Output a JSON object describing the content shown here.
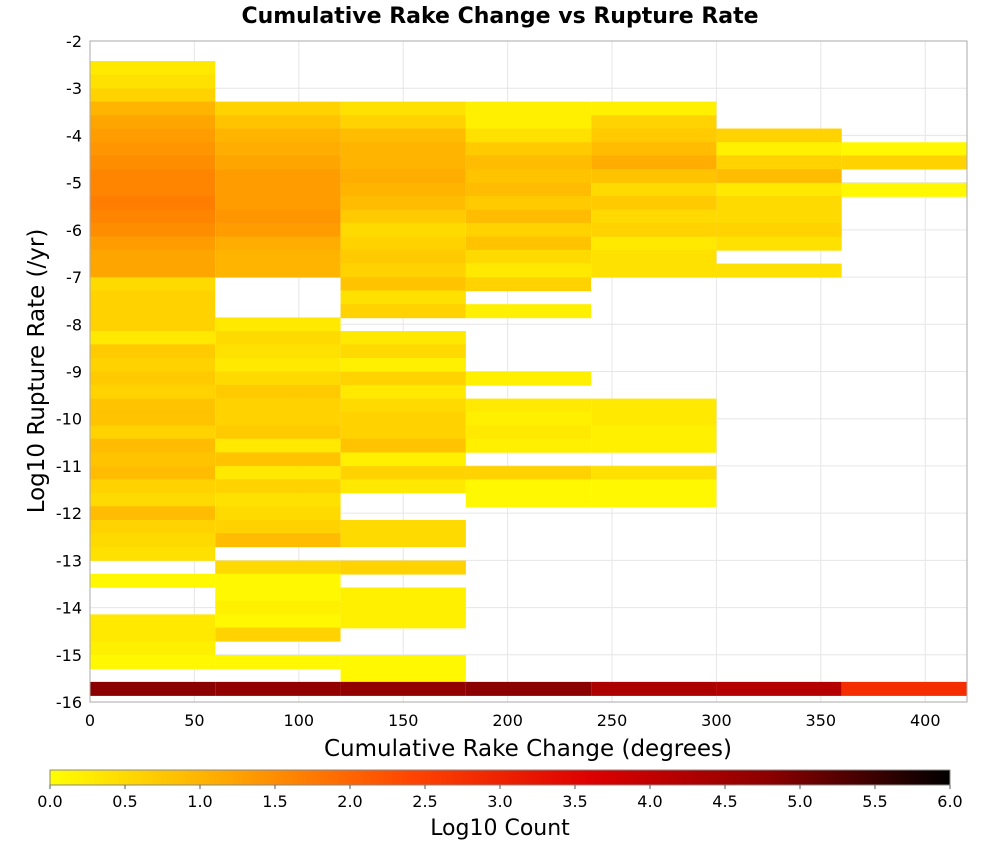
{
  "chart_data": {
    "type": "heatmap",
    "title": "Cumulative Rake Change vs Rupture Rate",
    "xlabel": "Cumulative Rake Change (degrees)",
    "ylabel": "Log10 Rupture Rate (/yr)",
    "xlim": [
      0,
      420
    ],
    "ylim": [
      -16,
      -2
    ],
    "x_ticks": [
      "0",
      "50",
      "100",
      "150",
      "200",
      "250",
      "300",
      "350",
      "400"
    ],
    "y_ticks": [
      "-2",
      "-3",
      "-4",
      "-5",
      "-6",
      "-7",
      "-8",
      "-9",
      "-10",
      "-11",
      "-12",
      "-13",
      "-14",
      "-15",
      "-16"
    ],
    "x_bin_width": 60,
    "y_bin_height": 0.286,
    "grid": true,
    "colorbar": {
      "label": "Log10 Count",
      "range": [
        0,
        6
      ],
      "ticks": [
        "0.0",
        "0.5",
        "1.0",
        "1.5",
        "2.0",
        "2.5",
        "3.0",
        "3.5",
        "4.0",
        "4.5",
        "5.0",
        "5.5",
        "6.0"
      ],
      "stops": [
        "#ffff00",
        "#ffa500",
        "#ff4500",
        "#dd0000",
        "#8b0000",
        "#000000"
      ]
    },
    "columns": [
      {
        "x0": 0,
        "bins": [
          [
            -2.71,
            0.3
          ],
          [
            -3.0,
            0.4
          ],
          [
            -3.29,
            0.6
          ],
          [
            -3.57,
            1.0
          ],
          [
            -3.86,
            1.2
          ],
          [
            -4.14,
            1.3
          ],
          [
            -4.43,
            1.4
          ],
          [
            -4.71,
            1.5
          ],
          [
            -5.0,
            1.6
          ],
          [
            -5.29,
            1.6
          ],
          [
            -5.57,
            1.7
          ],
          [
            -5.86,
            1.6
          ],
          [
            -6.14,
            1.5
          ],
          [
            -6.43,
            1.3
          ],
          [
            -6.71,
            1.2
          ],
          [
            -7.0,
            1.2
          ],
          [
            -7.29,
            0.5
          ],
          [
            -7.57,
            0.6
          ],
          [
            -7.86,
            0.6
          ],
          [
            -8.14,
            0.6
          ],
          [
            -8.43,
            0.3
          ],
          [
            -8.71,
            0.7
          ],
          [
            -9.0,
            0.6
          ],
          [
            -9.29,
            0.7
          ],
          [
            -9.57,
            0.6
          ],
          [
            -9.86,
            0.8
          ],
          [
            -10.14,
            0.8
          ],
          [
            -10.43,
            0.6
          ],
          [
            -10.71,
            0.9
          ],
          [
            -11.0,
            0.8
          ],
          [
            -11.29,
            0.9
          ],
          [
            -11.57,
            0.6
          ],
          [
            -11.86,
            0.5
          ],
          [
            -12.14,
            0.9
          ],
          [
            -12.43,
            0.6
          ],
          [
            -12.71,
            0.5
          ],
          [
            -13.0,
            0.4
          ],
          [
            -13.57,
            0.1
          ],
          [
            -14.43,
            0.3
          ],
          [
            -14.71,
            0.3
          ],
          [
            -15.0,
            0.2
          ],
          [
            -15.29,
            0.1
          ],
          [
            -15.86,
            4.8
          ]
        ]
      },
      {
        "x0": 60,
        "bins": [
          [
            -3.57,
            0.6
          ],
          [
            -3.86,
            0.8
          ],
          [
            -4.14,
            1.0
          ],
          [
            -4.43,
            1.1
          ],
          [
            -4.71,
            1.2
          ],
          [
            -5.0,
            1.3
          ],
          [
            -5.29,
            1.3
          ],
          [
            -5.57,
            1.3
          ],
          [
            -5.86,
            1.4
          ],
          [
            -6.14,
            1.3
          ],
          [
            -6.43,
            1.1
          ],
          [
            -6.71,
            1.0
          ],
          [
            -7.0,
            1.0
          ],
          [
            -8.14,
            0.3
          ],
          [
            -8.43,
            0.5
          ],
          [
            -8.71,
            0.4
          ],
          [
            -9.0,
            0.3
          ],
          [
            -9.29,
            0.5
          ],
          [
            -9.57,
            0.7
          ],
          [
            -9.86,
            0.6
          ],
          [
            -10.14,
            0.6
          ],
          [
            -10.43,
            0.7
          ],
          [
            -10.71,
            0.3
          ],
          [
            -11.0,
            0.8
          ],
          [
            -11.29,
            0.3
          ],
          [
            -11.57,
            0.6
          ],
          [
            -11.86,
            0.4
          ],
          [
            -12.14,
            0.5
          ],
          [
            -12.43,
            0.6
          ],
          [
            -12.71,
            0.9
          ],
          [
            -13.29,
            0.5
          ],
          [
            -13.57,
            0.1
          ],
          [
            -13.86,
            0.1
          ],
          [
            -14.14,
            0.2
          ],
          [
            -14.43,
            0.1
          ],
          [
            -14.71,
            0.6
          ],
          [
            -15.29,
            0.1
          ],
          [
            -15.86,
            4.7
          ]
        ]
      },
      {
        "x0": 120,
        "bins": [
          [
            -3.57,
            0.4
          ],
          [
            -3.86,
            0.6
          ],
          [
            -4.14,
            0.9
          ],
          [
            -4.43,
            1.0
          ],
          [
            -4.71,
            1.0
          ],
          [
            -5.0,
            1.1
          ],
          [
            -5.29,
            1.0
          ],
          [
            -5.57,
            0.9
          ],
          [
            -5.86,
            0.7
          ],
          [
            -6.14,
            0.5
          ],
          [
            -6.43,
            0.6
          ],
          [
            -6.71,
            0.7
          ],
          [
            -7.0,
            0.6
          ],
          [
            -7.29,
            0.8
          ],
          [
            -7.57,
            0.4
          ],
          [
            -7.86,
            0.6
          ],
          [
            -8.43,
            0.3
          ],
          [
            -8.71,
            0.5
          ],
          [
            -9.0,
            0.2
          ],
          [
            -9.29,
            0.6
          ],
          [
            -9.57,
            0.3
          ],
          [
            -9.86,
            0.5
          ],
          [
            -10.14,
            0.6
          ],
          [
            -10.43,
            0.6
          ],
          [
            -10.71,
            0.8
          ],
          [
            -11.0,
            0.2
          ],
          [
            -11.29,
            0.6
          ],
          [
            -11.57,
            0.3
          ],
          [
            -12.43,
            0.5
          ],
          [
            -12.71,
            0.5
          ],
          [
            -13.29,
            0.6
          ],
          [
            -13.86,
            0.2
          ],
          [
            -14.14,
            0.2
          ],
          [
            -14.43,
            0.2
          ],
          [
            -15.29,
            0.1
          ],
          [
            -15.57,
            0.1
          ],
          [
            -15.86,
            4.7
          ]
        ]
      },
      {
        "x0": 180,
        "bins": [
          [
            -3.57,
            0.2
          ],
          [
            -3.86,
            0.2
          ],
          [
            -4.14,
            0.4
          ],
          [
            -4.43,
            0.7
          ],
          [
            -4.71,
            0.9
          ],
          [
            -5.0,
            0.8
          ],
          [
            -5.29,
            0.9
          ],
          [
            -5.57,
            0.7
          ],
          [
            -5.86,
            0.9
          ],
          [
            -6.14,
            0.6
          ],
          [
            -6.43,
            0.8
          ],
          [
            -6.71,
            0.5
          ],
          [
            -7.0,
            0.3
          ],
          [
            -7.29,
            0.6
          ],
          [
            -7.86,
            0.2
          ],
          [
            -9.29,
            0.2
          ],
          [
            -9.86,
            0.3
          ],
          [
            -10.14,
            0.2
          ],
          [
            -10.43,
            0.3
          ],
          [
            -10.71,
            0.2
          ],
          [
            -11.29,
            0.6
          ],
          [
            -11.57,
            0.1
          ],
          [
            -11.86,
            0.1
          ],
          [
            -15.86,
            4.8
          ]
        ]
      },
      {
        "x0": 240,
        "bins": [
          [
            -3.57,
            0.2
          ],
          [
            -3.86,
            0.6
          ],
          [
            -4.14,
            0.7
          ],
          [
            -4.43,
            0.9
          ],
          [
            -4.71,
            1.1
          ],
          [
            -5.0,
            0.8
          ],
          [
            -5.29,
            0.5
          ],
          [
            -5.57,
            0.7
          ],
          [
            -5.86,
            0.5
          ],
          [
            -6.14,
            0.6
          ],
          [
            -6.43,
            0.3
          ],
          [
            -6.71,
            0.4
          ],
          [
            -7.0,
            0.4
          ],
          [
            -9.86,
            0.3
          ],
          [
            -10.14,
            0.3
          ],
          [
            -10.43,
            0.2
          ],
          [
            -10.71,
            0.2
          ],
          [
            -11.29,
            0.4
          ],
          [
            -11.57,
            0.1
          ],
          [
            -11.86,
            0.1
          ],
          [
            -15.86,
            4.3
          ]
        ]
      },
      {
        "x0": 300,
        "bins": [
          [
            -4.14,
            0.6
          ],
          [
            -4.43,
            0.2
          ],
          [
            -4.71,
            0.6
          ],
          [
            -5.0,
            0.9
          ],
          [
            -5.29,
            0.3
          ],
          [
            -5.57,
            0.5
          ],
          [
            -5.86,
            0.5
          ],
          [
            -6.14,
            0.6
          ],
          [
            -6.43,
            0.4
          ],
          [
            -7.0,
            0.4
          ],
          [
            -15.86,
            4.2
          ]
        ]
      },
      {
        "x0": 360,
        "bins": [
          [
            -4.43,
            0.1
          ],
          [
            -4.71,
            0.6
          ],
          [
            -5.29,
            0.1
          ],
          [
            -15.86,
            2.8
          ]
        ]
      }
    ]
  }
}
